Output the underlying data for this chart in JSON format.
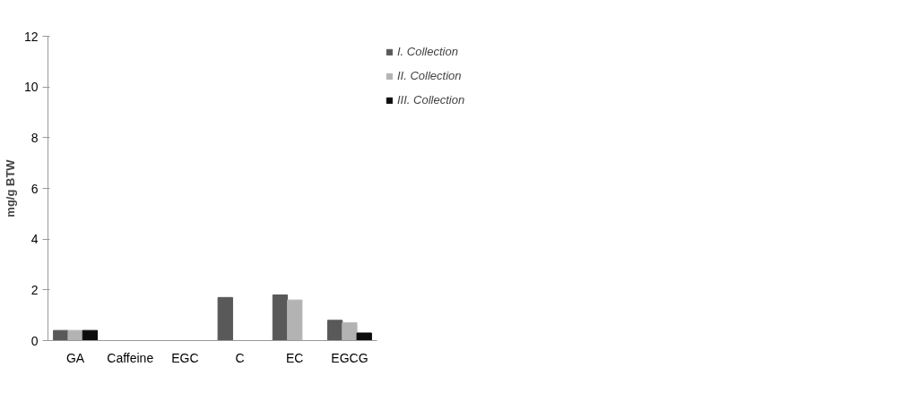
{
  "chart_data": {
    "type": "bar",
    "ylabel": "mg/g BTW",
    "categories": [
      "GA",
      "Caffeine",
      "EGC",
      "C",
      "EC",
      "EGCG"
    ],
    "series": [
      {
        "name": "I. Collection",
        "color": "#595959",
        "values": [
          0.4,
          0,
          0,
          1.7,
          1.8,
          0.8
        ]
      },
      {
        "name": "II. Collection",
        "color": "#b3b3b3",
        "values": [
          0.4,
          0,
          0,
          0,
          1.6,
          0.7
        ]
      },
      {
        "name": "III. Collection",
        "color": "#0d0d0d",
        "values": [
          0.4,
          0,
          0,
          0,
          0,
          0.3
        ]
      }
    ],
    "ylim": [
      0,
      12
    ],
    "yticks": [
      0,
      2,
      4,
      6,
      8,
      10,
      12
    ],
    "grid": false,
    "legend": "top right"
  }
}
